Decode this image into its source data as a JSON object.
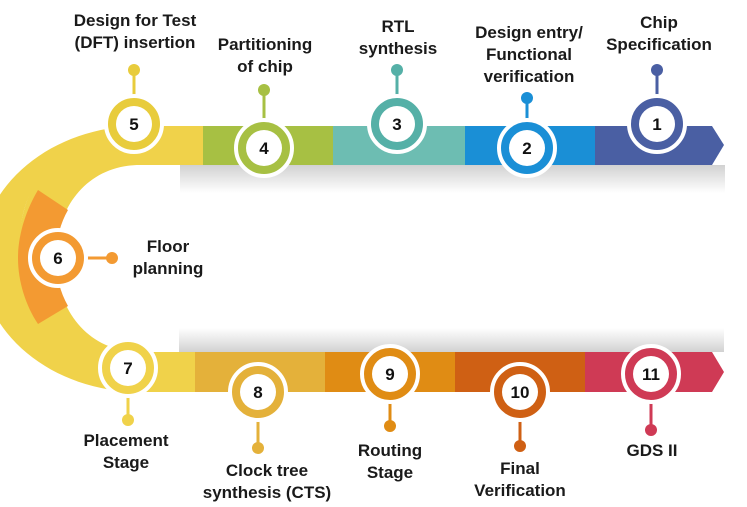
{
  "steps": [
    {
      "num": "1",
      "line1": "Chip",
      "line2": "Specification",
      "color": "#4a5fa3"
    },
    {
      "num": "2",
      "line1": "Design entry/",
      "line2": "Functional",
      "line3": "verification",
      "color": "#1a8fd6"
    },
    {
      "num": "3",
      "line1": "RTL",
      "line2": "synthesis",
      "color": "#55b0a7"
    },
    {
      "num": "4",
      "line1": "Partitioning",
      "line2": "of chip",
      "color": "#a7c043"
    },
    {
      "num": "5",
      "line1": "Design for Test",
      "line2": "(DFT) insertion",
      "color": "#e8cc3c"
    },
    {
      "num": "6",
      "line1": "Floor",
      "line2": "planning",
      "color": "#f39a32"
    },
    {
      "num": "7",
      "line1": "Placement",
      "line2": "Stage",
      "color": "#f0d24a"
    },
    {
      "num": "8",
      "line1": "Clock tree",
      "line2": "synthesis (CTS)",
      "color": "#e4b13a"
    },
    {
      "num": "9",
      "line1": "Routing",
      "line2": "Stage",
      "color": "#e08c14"
    },
    {
      "num": "10",
      "line1": "Final",
      "line2": "Verification",
      "color": "#cf6014"
    },
    {
      "num": "11",
      "line1": "GDS II",
      "color": "#cf3a55"
    }
  ]
}
